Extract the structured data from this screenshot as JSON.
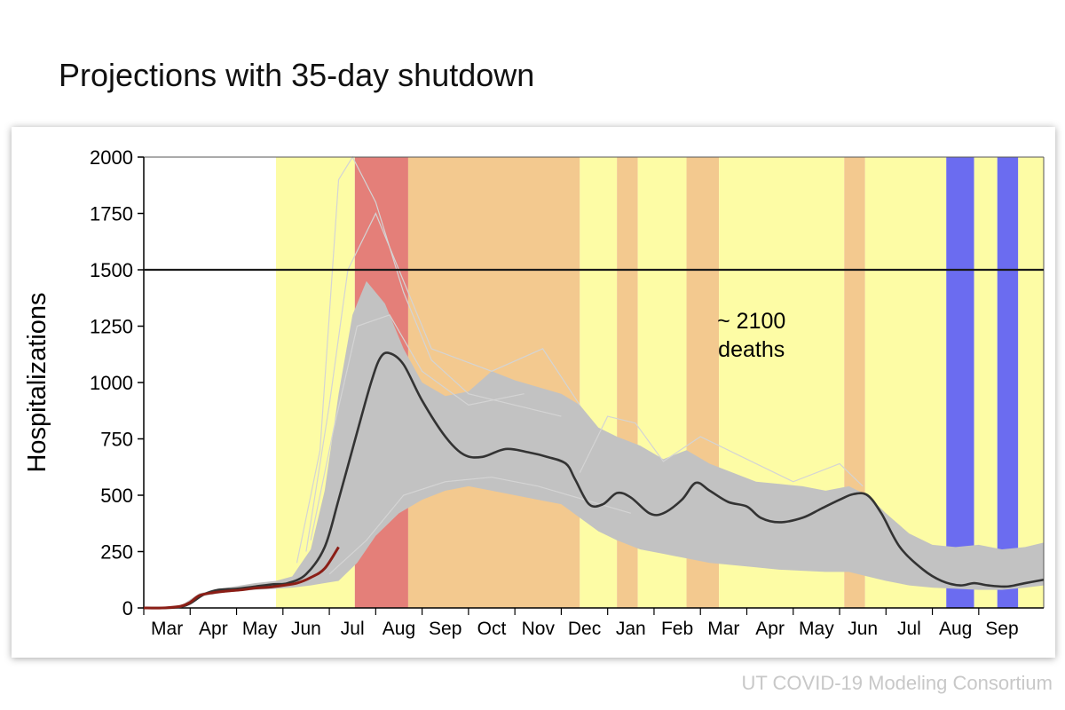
{
  "page_title": "Projections with 35-day shutdown",
  "credit": "UT COVID-19 Modeling Consortium",
  "colors": {
    "phase_yellow": "#fdfca5",
    "phase_orange": "#f3c98f",
    "phase_red": "#e47f79",
    "phase_blue": "#6b6cf0",
    "ensemble_gray": "#c2c2c2",
    "median_line": "#333333",
    "observed_line": "#8b1e16",
    "threshold_line": "#1a1a1a"
  },
  "chart_data": {
    "type": "line",
    "title": "",
    "xlabel": "",
    "ylabel": "Hospitalizations",
    "x_unit": "months since early March",
    "xlim": [
      0,
      18.6
    ],
    "ylim": [
      0,
      2000
    ],
    "y_ticks": [
      "0",
      "250",
      "500",
      "750",
      "1000",
      "1250",
      "1500",
      "1750",
      "2000"
    ],
    "y_tick_values": [
      0,
      250,
      500,
      750,
      1000,
      1250,
      1500,
      1750,
      2000
    ],
    "x_tick_labels": [
      "Mar",
      "Apr",
      "May",
      "Jun",
      "Jul",
      "Aug",
      "Sep",
      "Oct",
      "Nov",
      "Dec",
      "Jan",
      "Feb",
      "Mar",
      "Apr",
      "May",
      "Jun",
      "Jul",
      "Aug",
      "Sep"
    ],
    "grid": false,
    "threshold": {
      "y": 1500
    },
    "annotation": {
      "line1": "~ 2100",
      "line2": "deaths",
      "x": 13.1,
      "y": 1240
    },
    "phase_bands": [
      {
        "start": 2.85,
        "end": 4.55,
        "level": "yellow"
      },
      {
        "start": 4.55,
        "end": 5.7,
        "level": "red"
      },
      {
        "start": 5.7,
        "end": 9.4,
        "level": "orange"
      },
      {
        "start": 9.4,
        "end": 10.2,
        "level": "yellow"
      },
      {
        "start": 10.2,
        "end": 10.65,
        "level": "orange"
      },
      {
        "start": 10.65,
        "end": 11.7,
        "level": "yellow"
      },
      {
        "start": 11.7,
        "end": 12.4,
        "level": "orange"
      },
      {
        "start": 12.4,
        "end": 15.1,
        "level": "yellow"
      },
      {
        "start": 15.1,
        "end": 15.55,
        "level": "orange"
      },
      {
        "start": 15.55,
        "end": 17.3,
        "level": "yellow"
      },
      {
        "start": 17.3,
        "end": 17.9,
        "level": "blue"
      },
      {
        "start": 17.9,
        "end": 18.4,
        "level": "yellow"
      },
      {
        "start": 18.4,
        "end": 18.85,
        "level": "blue"
      },
      {
        "start": 18.85,
        "end": 19.4,
        "level": "yellow"
      }
    ],
    "series": [
      {
        "kind": "median_projection",
        "x": [
          0,
          0.5,
          0.8,
          1.0,
          1.3,
          1.6,
          2.0,
          2.4,
          2.8,
          3.1,
          3.5,
          3.9,
          4.2,
          4.6,
          4.9,
          5.1,
          5.3,
          5.6,
          6.0,
          6.5,
          6.9,
          7.3,
          7.8,
          8.3,
          8.7,
          9.1,
          9.3,
          9.6,
          9.9,
          10.2,
          10.5,
          10.9,
          11.2,
          11.6,
          11.9,
          12.2,
          12.6,
          13.0,
          13.3,
          13.7,
          14.2,
          14.6,
          15.0,
          15.3,
          15.6,
          15.9,
          16.3,
          16.8,
          17.2,
          17.6,
          17.9,
          18.2,
          18.6,
          19.0,
          19.4
        ],
        "y": [
          0,
          0,
          5,
          20,
          60,
          80,
          85,
          95,
          105,
          110,
          150,
          270,
          480,
          780,
          1000,
          1110,
          1130,
          1080,
          920,
          760,
          680,
          670,
          705,
          690,
          670,
          640,
          570,
          460,
          460,
          510,
          490,
          420,
          420,
          480,
          555,
          520,
          470,
          450,
          400,
          380,
          400,
          440,
          480,
          505,
          500,
          420,
          270,
          170,
          120,
          100,
          110,
          100,
          95,
          110,
          125
        ]
      },
      {
        "kind": "observed",
        "x": [
          0,
          0.4,
          0.8,
          1.0,
          1.2,
          1.5,
          1.8,
          2.1,
          2.4,
          2.7,
          3.0,
          3.3,
          3.6,
          3.9,
          4.2
        ],
        "y": [
          0,
          0,
          8,
          25,
          55,
          68,
          75,
          80,
          88,
          92,
          100,
          110,
          135,
          175,
          270
        ]
      },
      {
        "kind": "ensemble_upper",
        "x": [
          0,
          0.8,
          1.2,
          1.8,
          2.4,
          2.85,
          3.2,
          3.6,
          3.9,
          4.2,
          4.5,
          4.8,
          5.2,
          5.6,
          6.0,
          6.5,
          7.0,
          7.5,
          8.0,
          8.5,
          9.0,
          9.4,
          9.8,
          10.2,
          10.7,
          11.2,
          11.7,
          12.2,
          12.7,
          13.2,
          13.7,
          14.2,
          14.7,
          15.2,
          15.6,
          16.0,
          16.5,
          17.0,
          17.5,
          18.0,
          18.5,
          19.0,
          19.4
        ],
        "y": [
          0,
          10,
          65,
          90,
          110,
          120,
          140,
          260,
          520,
          950,
          1300,
          1450,
          1350,
          1150,
          1000,
          940,
          960,
          1050,
          1010,
          980,
          950,
          900,
          800,
          760,
          720,
          660,
          700,
          640,
          600,
          560,
          550,
          540,
          520,
          540,
          500,
          420,
          330,
          280,
          270,
          280,
          260,
          270,
          290
        ]
      },
      {
        "kind": "ensemble_lower",
        "x": [
          0,
          0.8,
          1.2,
          1.8,
          2.4,
          2.85,
          3.2,
          3.6,
          3.9,
          4.2,
          4.6,
          5.0,
          5.5,
          6.0,
          6.5,
          7.0,
          7.5,
          8.0,
          8.5,
          9.0,
          9.4,
          9.8,
          10.2,
          10.7,
          11.2,
          11.7,
          12.2,
          12.7,
          13.2,
          13.7,
          14.2,
          14.7,
          15.2,
          15.6,
          16.0,
          16.5,
          17.0,
          17.5,
          18.0,
          18.5,
          19.0,
          19.4
        ],
        "y": [
          0,
          0,
          50,
          70,
          80,
          85,
          90,
          100,
          110,
          120,
          200,
          320,
          420,
          480,
          520,
          540,
          520,
          500,
          480,
          460,
          400,
          340,
          300,
          260,
          240,
          220,
          200,
          190,
          180,
          170,
          165,
          160,
          160,
          140,
          120,
          100,
          90,
          85,
          80,
          80,
          90,
          100
        ]
      }
    ]
  }
}
